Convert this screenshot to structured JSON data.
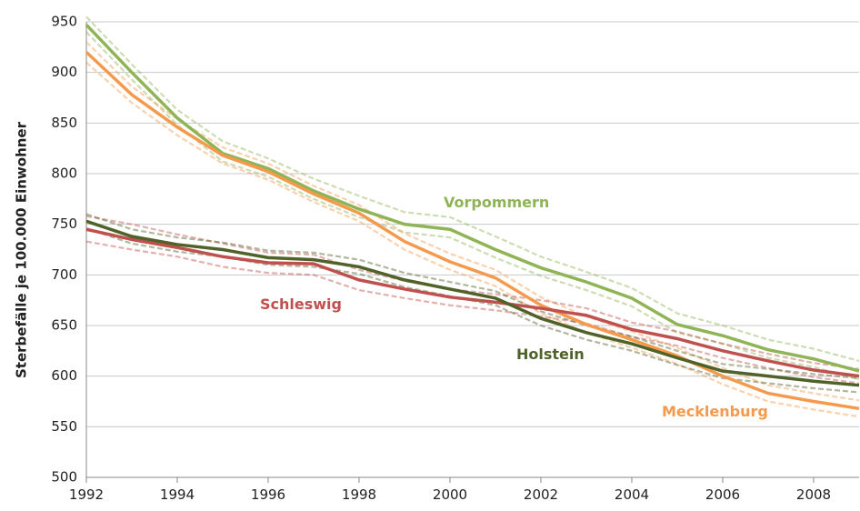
{
  "chart_data": {
    "type": "line",
    "y_label": "Sterbefälle je 100.000 Einwohner",
    "x": [
      1992,
      1993,
      1994,
      1995,
      1996,
      1997,
      1998,
      1999,
      2000,
      2001,
      2002,
      2003,
      2004,
      2005,
      2006,
      2007,
      2008,
      2009
    ],
    "xlim": [
      1992,
      2009
    ],
    "xticks": [
      1992,
      1994,
      1996,
      1998,
      2000,
      2002,
      2004,
      2006,
      2008
    ],
    "ylim": [
      500,
      950
    ],
    "yticks": [
      500,
      550,
      600,
      650,
      700,
      750,
      800,
      850,
      900,
      950
    ],
    "grid": true,
    "series": [
      {
        "name": "Vorpommern",
        "color": "#8fb456",
        "values": [
          947,
          900,
          855,
          820,
          805,
          783,
          765,
          750,
          745,
          725,
          707,
          693,
          677,
          651,
          640,
          626,
          617,
          605
        ],
        "upper": [
          955,
          908,
          863,
          832,
          815,
          795,
          778,
          762,
          757,
          738,
          718,
          703,
          687,
          662,
          650,
          636,
          627,
          615
        ],
        "lower": [
          940,
          893,
          848,
          812,
          797,
          775,
          757,
          742,
          737,
          717,
          699,
          685,
          669,
          643,
          632,
          618,
          609,
          597
        ]
      },
      {
        "name": "Mecklenburg",
        "color": "#f59a4c",
        "values": [
          920,
          878,
          846,
          818,
          802,
          780,
          761,
          733,
          713,
          697,
          670,
          651,
          636,
          620,
          600,
          583,
          575,
          568
        ],
        "upper": [
          930,
          886,
          854,
          826,
          810,
          788,
          769,
          741,
          721,
          705,
          678,
          659,
          644,
          628,
          608,
          591,
          583,
          576
        ],
        "lower": [
          910,
          870,
          838,
          810,
          794,
          772,
          753,
          725,
          705,
          689,
          662,
          643,
          628,
          612,
          592,
          575,
          567,
          560
        ]
      },
      {
        "name": "Schleswig",
        "color": "#c0504d",
        "values": [
          745,
          735,
          727,
          718,
          712,
          711,
          695,
          686,
          678,
          673,
          667,
          660,
          646,
          637,
          625,
          615,
          606,
          600
        ],
        "upper": [
          758,
          750,
          740,
          731,
          722,
          720,
          705,
          694,
          686,
          681,
          675,
          667,
          653,
          644,
          632,
          622,
          613,
          607
        ],
        "lower": [
          733,
          725,
          718,
          708,
          702,
          700,
          685,
          677,
          670,
          665,
          659,
          652,
          639,
          630,
          618,
          608,
          599,
          593
        ]
      },
      {
        "name": "Holstein",
        "color": "#4f6228",
        "values": [
          753,
          738,
          730,
          725,
          717,
          715,
          708,
          695,
          686,
          677,
          657,
          643,
          632,
          618,
          605,
          600,
          595,
          591
        ],
        "upper": [
          760,
          745,
          737,
          732,
          724,
          722,
          715,
          702,
          693,
          684,
          664,
          650,
          639,
          625,
          612,
          607,
          602,
          598
        ],
        "lower": [
          746,
          731,
          723,
          718,
          710,
          708,
          701,
          688,
          679,
          670,
          650,
          636,
          625,
          611,
          598,
          593,
          588,
          584
        ]
      }
    ]
  }
}
